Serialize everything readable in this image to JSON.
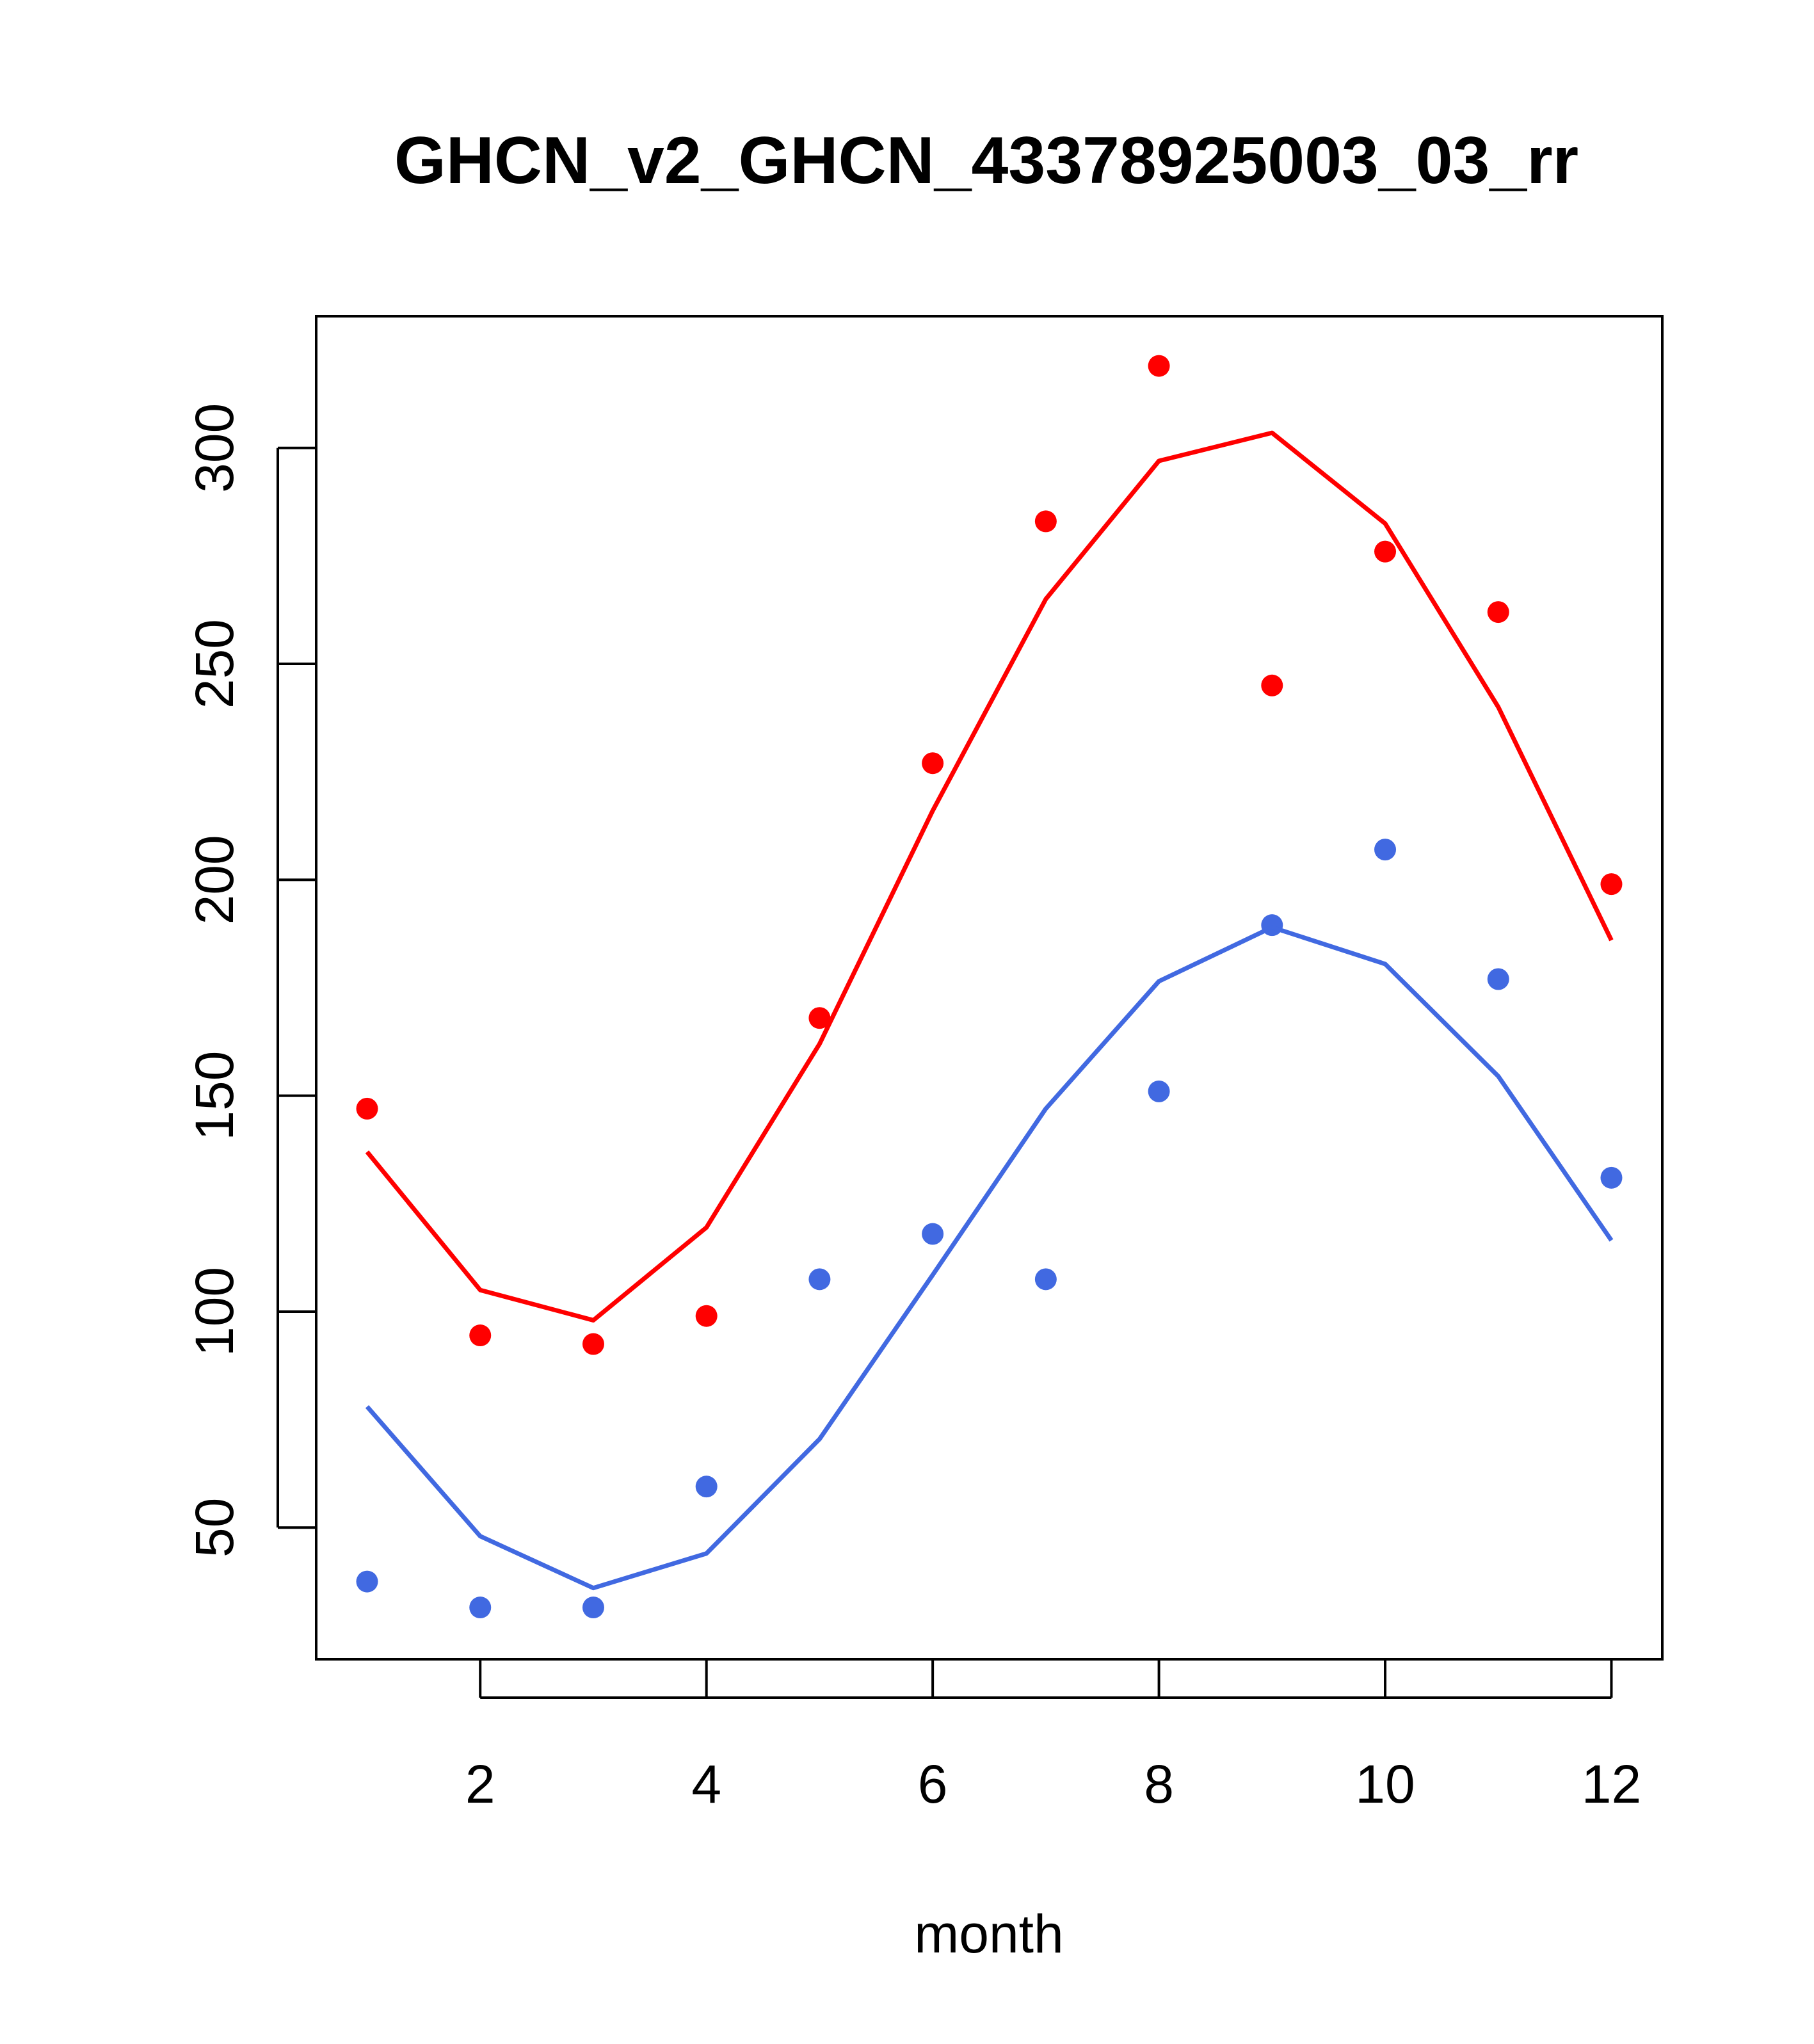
{
  "chart_data": {
    "type": "scatter",
    "title": "GHCN_v2_GHCN_43378925003_03_rr",
    "xlabel": "month",
    "ylabel": "",
    "xlim": [
      0.55,
      12.45
    ],
    "ylim": [
      19.5,
      330.5
    ],
    "x_ticks": [
      2,
      4,
      6,
      8,
      10,
      12
    ],
    "y_ticks": [
      50,
      100,
      150,
      200,
      250,
      300
    ],
    "grid": false,
    "legend": "none",
    "series": [
      {
        "mode": "points",
        "color": "#FF0000",
        "x": [
          1,
          2,
          3,
          4,
          5,
          6,
          7,
          8,
          9,
          10,
          11,
          12
        ],
        "y": [
          147,
          94.5,
          92.5,
          99,
          168,
          227,
          283,
          319,
          245,
          276,
          262,
          199
        ]
      },
      {
        "mode": "line",
        "color": "#FF0000",
        "x": [
          1,
          2,
          3,
          4,
          5,
          6,
          7,
          8,
          9,
          10,
          11,
          12
        ],
        "y": [
          137,
          105,
          98,
          119.5,
          162,
          216,
          265,
          297,
          303.5,
          282.5,
          240,
          186
        ]
      },
      {
        "mode": "points",
        "color": "#4169E1",
        "x": [
          1,
          2,
          3,
          4,
          5,
          6,
          7,
          8,
          9,
          10,
          11,
          12
        ],
        "y": [
          37.5,
          31.5,
          31.5,
          59.5,
          107.5,
          118,
          107.5,
          151,
          189.5,
          207,
          177,
          131
        ]
      },
      {
        "mode": "line",
        "color": "#4169E1",
        "x": [
          1,
          2,
          3,
          4,
          5,
          6,
          7,
          8,
          9,
          10,
          11,
          12
        ],
        "y": [
          78,
          48,
          36,
          44,
          70.5,
          108.5,
          147,
          176.5,
          189,
          180.5,
          154.5,
          116.5
        ]
      }
    ]
  }
}
